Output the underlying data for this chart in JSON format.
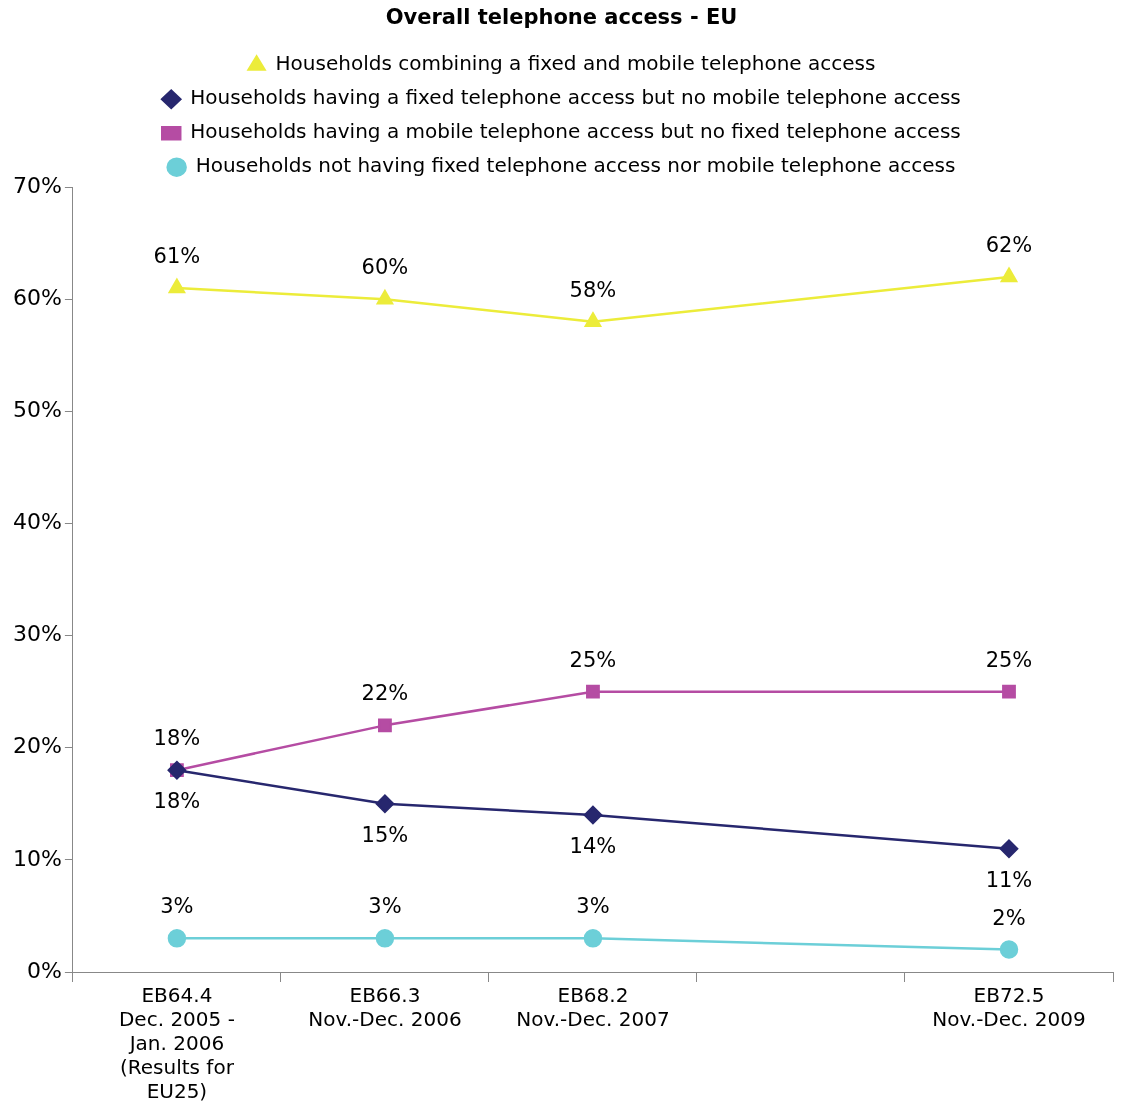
{
  "chart_data": {
    "type": "line",
    "title": "Overall telephone access - EU",
    "categories": [
      "EB64.4\nDec. 2005 -\nJan. 2006\n(Results for\nEU25)",
      "EB66.3\nNov.-Dec. 2006",
      "EB68.2\nNov.-Dec. 2007",
      null,
      "EB72.5\nNov.-Dec. 2009"
    ],
    "series": [
      {
        "name": "Households combining a fixed and mobile telephone access",
        "color": "#ecec3a",
        "marker": "triangle",
        "values": [
          61,
          60,
          58,
          null,
          62
        ],
        "value_labels": [
          "61%",
          "60%",
          "58%",
          null,
          "62%"
        ]
      },
      {
        "name": "Households having a fixed telephone access but no mobile telephone access",
        "color": "#27276e",
        "marker": "diamond",
        "values": [
          18,
          15,
          14,
          null,
          11
        ],
        "value_labels": [
          "18%",
          "15%",
          "14%",
          null,
          "11%"
        ]
      },
      {
        "name": "Households having a mobile telephone access but no fixed telephone access",
        "color": "#b54ca3",
        "marker": "square",
        "values": [
          18,
          22,
          25,
          null,
          25
        ],
        "value_labels": [
          "18%",
          "22%",
          "25%",
          null,
          "25%"
        ]
      },
      {
        "name": "Households not having fixed telephone access nor mobile telephone access",
        "color": "#6ccfd8",
        "marker": "circle",
        "values": [
          3,
          3,
          3,
          null,
          2
        ],
        "value_labels": [
          "3%",
          "3%",
          "3%",
          null,
          "2%"
        ]
      }
    ],
    "ylim": [
      0,
      70
    ],
    "yticks": [
      {
        "value": 0,
        "label": "0%"
      },
      {
        "value": 10,
        "label": "10%"
      },
      {
        "value": 20,
        "label": "20%"
      },
      {
        "value": 30,
        "label": "30%"
      },
      {
        "value": 40,
        "label": "40%"
      },
      {
        "value": 50,
        "label": "50%"
      },
      {
        "value": 60,
        "label": "60%"
      },
      {
        "value": 70,
        "label": "70%"
      }
    ],
    "grid": false,
    "legend": "top"
  }
}
